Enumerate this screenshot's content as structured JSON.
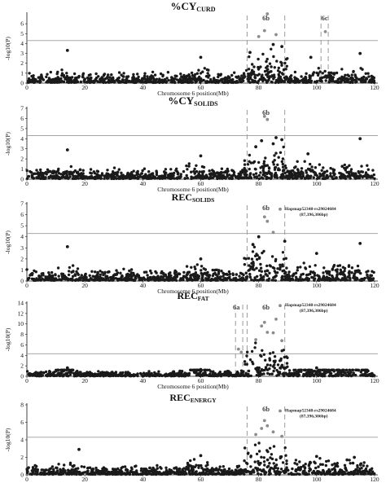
{
  "figure": {
    "xlabel": "Chromosome 6 position(Mb)",
    "ylabel": "-log10(P)",
    "xticks": [
      0,
      20,
      40,
      60,
      80,
      100,
      120
    ]
  },
  "colors": {
    "snp": "#1a1a1a",
    "significant": "#8c8c8c",
    "threshold": "#9a9a9a",
    "region_line": "#9a9a9a"
  },
  "chart_data": [
    {
      "type": "scatter",
      "title_main": "%CY",
      "title_sub": "CURD",
      "xlabel": "Chromosome 6 position(Mb)",
      "ylabel": "-log10(P)",
      "xlim": [
        0,
        120
      ],
      "ylim": [
        0,
        7
      ],
      "yticks": [
        0,
        1,
        2,
        3,
        4,
        5,
        6
      ],
      "threshold": 4.3,
      "regions": [
        {
          "label": "6b",
          "start": 76,
          "end": 89
        },
        {
          "label": "6c",
          "start": 101.5,
          "end": 104
        }
      ],
      "peaks": [
        [
          14,
          3.3
        ],
        [
          60,
          2.6
        ],
        [
          77,
          3.1
        ],
        [
          80,
          4.7
        ],
        [
          82,
          5.3
        ],
        [
          83,
          7.0
        ],
        [
          85,
          3.9
        ],
        [
          86,
          4.9
        ],
        [
          88,
          3.7
        ],
        [
          98,
          2.6
        ],
        [
          103,
          5.2
        ],
        [
          115,
          3.0
        ]
      ],
      "annotation": []
    },
    {
      "type": "scatter",
      "title_main": "%CY",
      "title_sub": "SOLIDS",
      "xlabel": "Chromosome 6 position(Mb)",
      "ylabel": "-log10(P)",
      "xlim": [
        0,
        120
      ],
      "ylim": [
        0,
        7
      ],
      "yticks": [
        0,
        1,
        2,
        3,
        4,
        5,
        6,
        7
      ],
      "threshold": 4.3,
      "regions": [
        {
          "label": "6b",
          "start": 76,
          "end": 89
        }
      ],
      "peaks": [
        [
          14,
          2.9
        ],
        [
          60,
          2.3
        ],
        [
          79,
          3.2
        ],
        [
          81,
          3.8
        ],
        [
          82,
          6.2
        ],
        [
          83,
          5.9
        ],
        [
          85,
          3.5
        ],
        [
          86,
          4.1
        ],
        [
          88,
          3.9
        ],
        [
          97,
          2.5
        ],
        [
          115,
          4.0
        ]
      ],
      "annotation": []
    },
    {
      "type": "scatter",
      "title_main": "REC",
      "title_sub": "SOLIDS",
      "xlabel": "Chromosome 6 position(Mb)",
      "ylabel": "-log10(P)",
      "xlim": [
        0,
        120
      ],
      "ylim": [
        0,
        7
      ],
      "yticks": [
        0,
        1,
        2,
        3,
        4,
        5,
        6,
        7
      ],
      "threshold": 4.3,
      "regions": [
        {
          "label": "6b",
          "start": 76,
          "end": 89
        }
      ],
      "peaks": [
        [
          14,
          3.1
        ],
        [
          60,
          2.0
        ],
        [
          78,
          3.3
        ],
        [
          80,
          4.0
        ],
        [
          82,
          5.8
        ],
        [
          83,
          5.4
        ],
        [
          85,
          4.4
        ],
        [
          87.4,
          6.5
        ],
        [
          89,
          3.6
        ],
        [
          100,
          2.5
        ],
        [
          115,
          3.4
        ]
      ],
      "annotation": [
        "Hapmap52348-rs29024684",
        "(87,396,306bp)"
      ]
    },
    {
      "type": "scatter",
      "title_main": "REC",
      "title_sub": "FAT",
      "xlabel": "Chromosome 6 position(Mb)",
      "ylabel": "-log10(P)",
      "xlim": [
        0,
        120
      ],
      "ylim": [
        0,
        14
      ],
      "yticks": [
        0,
        2,
        4,
        6,
        8,
        10,
        12,
        14
      ],
      "threshold": 4.3,
      "regions": [
        {
          "label": "6a",
          "start": 72,
          "end": 74.5
        },
        {
          "label": "6b",
          "start": 76,
          "end": 89
        }
      ],
      "peaks": [
        [
          14,
          1.6
        ],
        [
          60,
          1.3
        ],
        [
          73,
          5.2
        ],
        [
          74,
          4.6
        ],
        [
          79,
          7.0
        ],
        [
          81,
          9.6
        ],
        [
          82,
          10.3
        ],
        [
          83,
          8.4
        ],
        [
          85,
          8.3
        ],
        [
          86,
          10.9
        ],
        [
          87.4,
          13.5
        ],
        [
          88,
          6.8
        ],
        [
          100,
          1.6
        ]
      ],
      "annotation": [
        "Hapmap52348-rs29024684",
        "(87,396,306bp)"
      ]
    },
    {
      "type": "scatter",
      "title_main": "REC",
      "title_sub": "ENERGY",
      "xlabel": "Chromosome 6 position(Mb)",
      "ylabel": "-log10(P)",
      "xlim": [
        0,
        120
      ],
      "ylim": [
        0,
        8
      ],
      "yticks": [
        0,
        2,
        4,
        6,
        8
      ],
      "threshold": 4.3,
      "regions": [
        {
          "label": "6b",
          "start": 76,
          "end": 89
        }
      ],
      "peaks": [
        [
          18,
          2.9
        ],
        [
          60,
          2.2
        ],
        [
          79,
          4.6
        ],
        [
          81,
          5.3
        ],
        [
          82,
          6.2
        ],
        [
          83,
          5.6
        ],
        [
          85,
          4.9
        ],
        [
          87.4,
          7.3
        ],
        [
          88,
          4.4
        ],
        [
          100,
          2.1
        ],
        [
          113,
          2.0
        ]
      ],
      "annotation": [
        "Hapmap52348-rs29024684",
        "(87,396,306bp)"
      ]
    }
  ]
}
